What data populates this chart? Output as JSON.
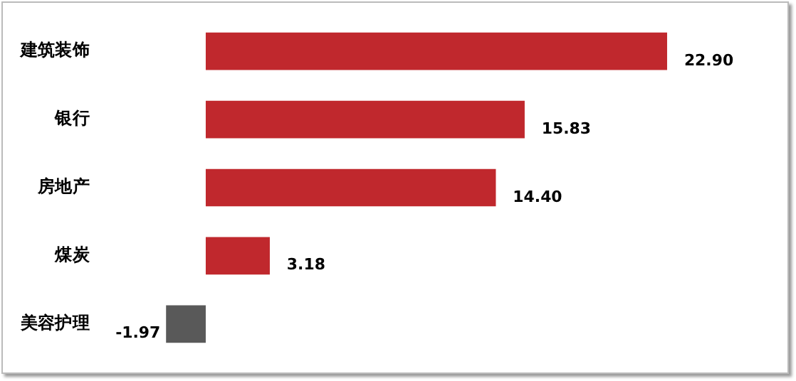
{
  "chart_data": {
    "type": "bar",
    "orientation": "horizontal",
    "categories": [
      "建筑装饰",
      "银行",
      "房地产",
      "煤炭",
      "美容护理"
    ],
    "values": [
      22.9,
      15.83,
      14.4,
      3.18,
      -1.97
    ],
    "colors": [
      "#c0282d",
      "#c0282d",
      "#c0282d",
      "#c0282d",
      "#595959"
    ],
    "value_labels": [
      "22.90",
      "15.83",
      "14.40",
      "3.18",
      "-1.97"
    ],
    "data_labels": true,
    "legend": false,
    "grid": false
  }
}
